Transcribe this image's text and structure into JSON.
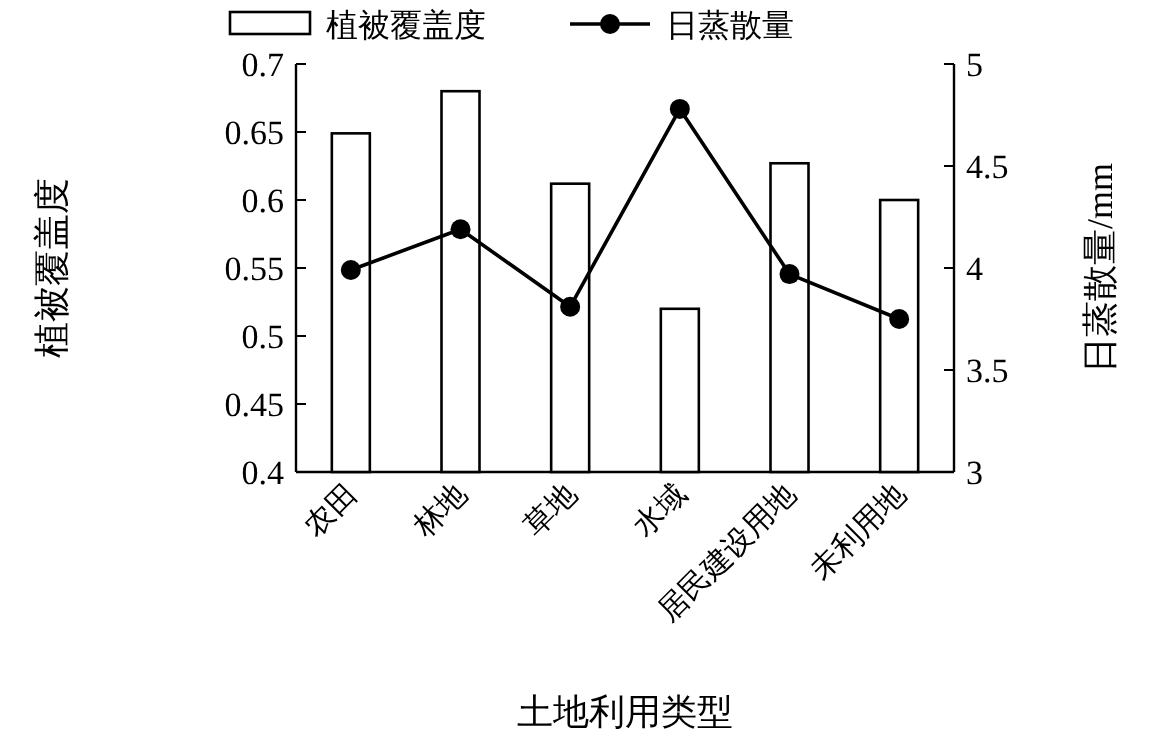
{
  "chart_data": {
    "type": "bar",
    "categories": [
      "农田",
      "林地",
      "草地",
      "水域",
      "居民建设用地",
      "未利用地"
    ],
    "xlabel": "土地利用类型",
    "ylabel": "植被覆盖度",
    "y2label": "日蒸散量/mm",
    "ylim": [
      0.4,
      0.7
    ],
    "yticks": [
      {
        "value": 0.4,
        "label": "0.4"
      },
      {
        "value": 0.45,
        "label": "0.45"
      },
      {
        "value": 0.5,
        "label": "0.5"
      },
      {
        "value": 0.55,
        "label": "0.55"
      },
      {
        "value": 0.6,
        "label": "0.6"
      },
      {
        "value": 0.65,
        "label": "0.65"
      },
      {
        "value": 0.7,
        "label": "0.7"
      }
    ],
    "y2lim": [
      3,
      5
    ],
    "y2ticks": [
      3,
      3.5,
      4,
      4.5,
      5
    ],
    "legend": "top",
    "series": [
      {
        "name": "植被覆盖度",
        "color": "#ffffff",
        "values": [
          0.649,
          0.68,
          0.612,
          0.52,
          0.627,
          0.6
        ]
      },
      {
        "name": "日蒸散量",
        "type": "line",
        "axis": "y2",
        "marker": "circle",
        "color": "#000000",
        "values": [
          3.99,
          4.19,
          3.81,
          4.78,
          3.97,
          3.75
        ]
      }
    ]
  }
}
